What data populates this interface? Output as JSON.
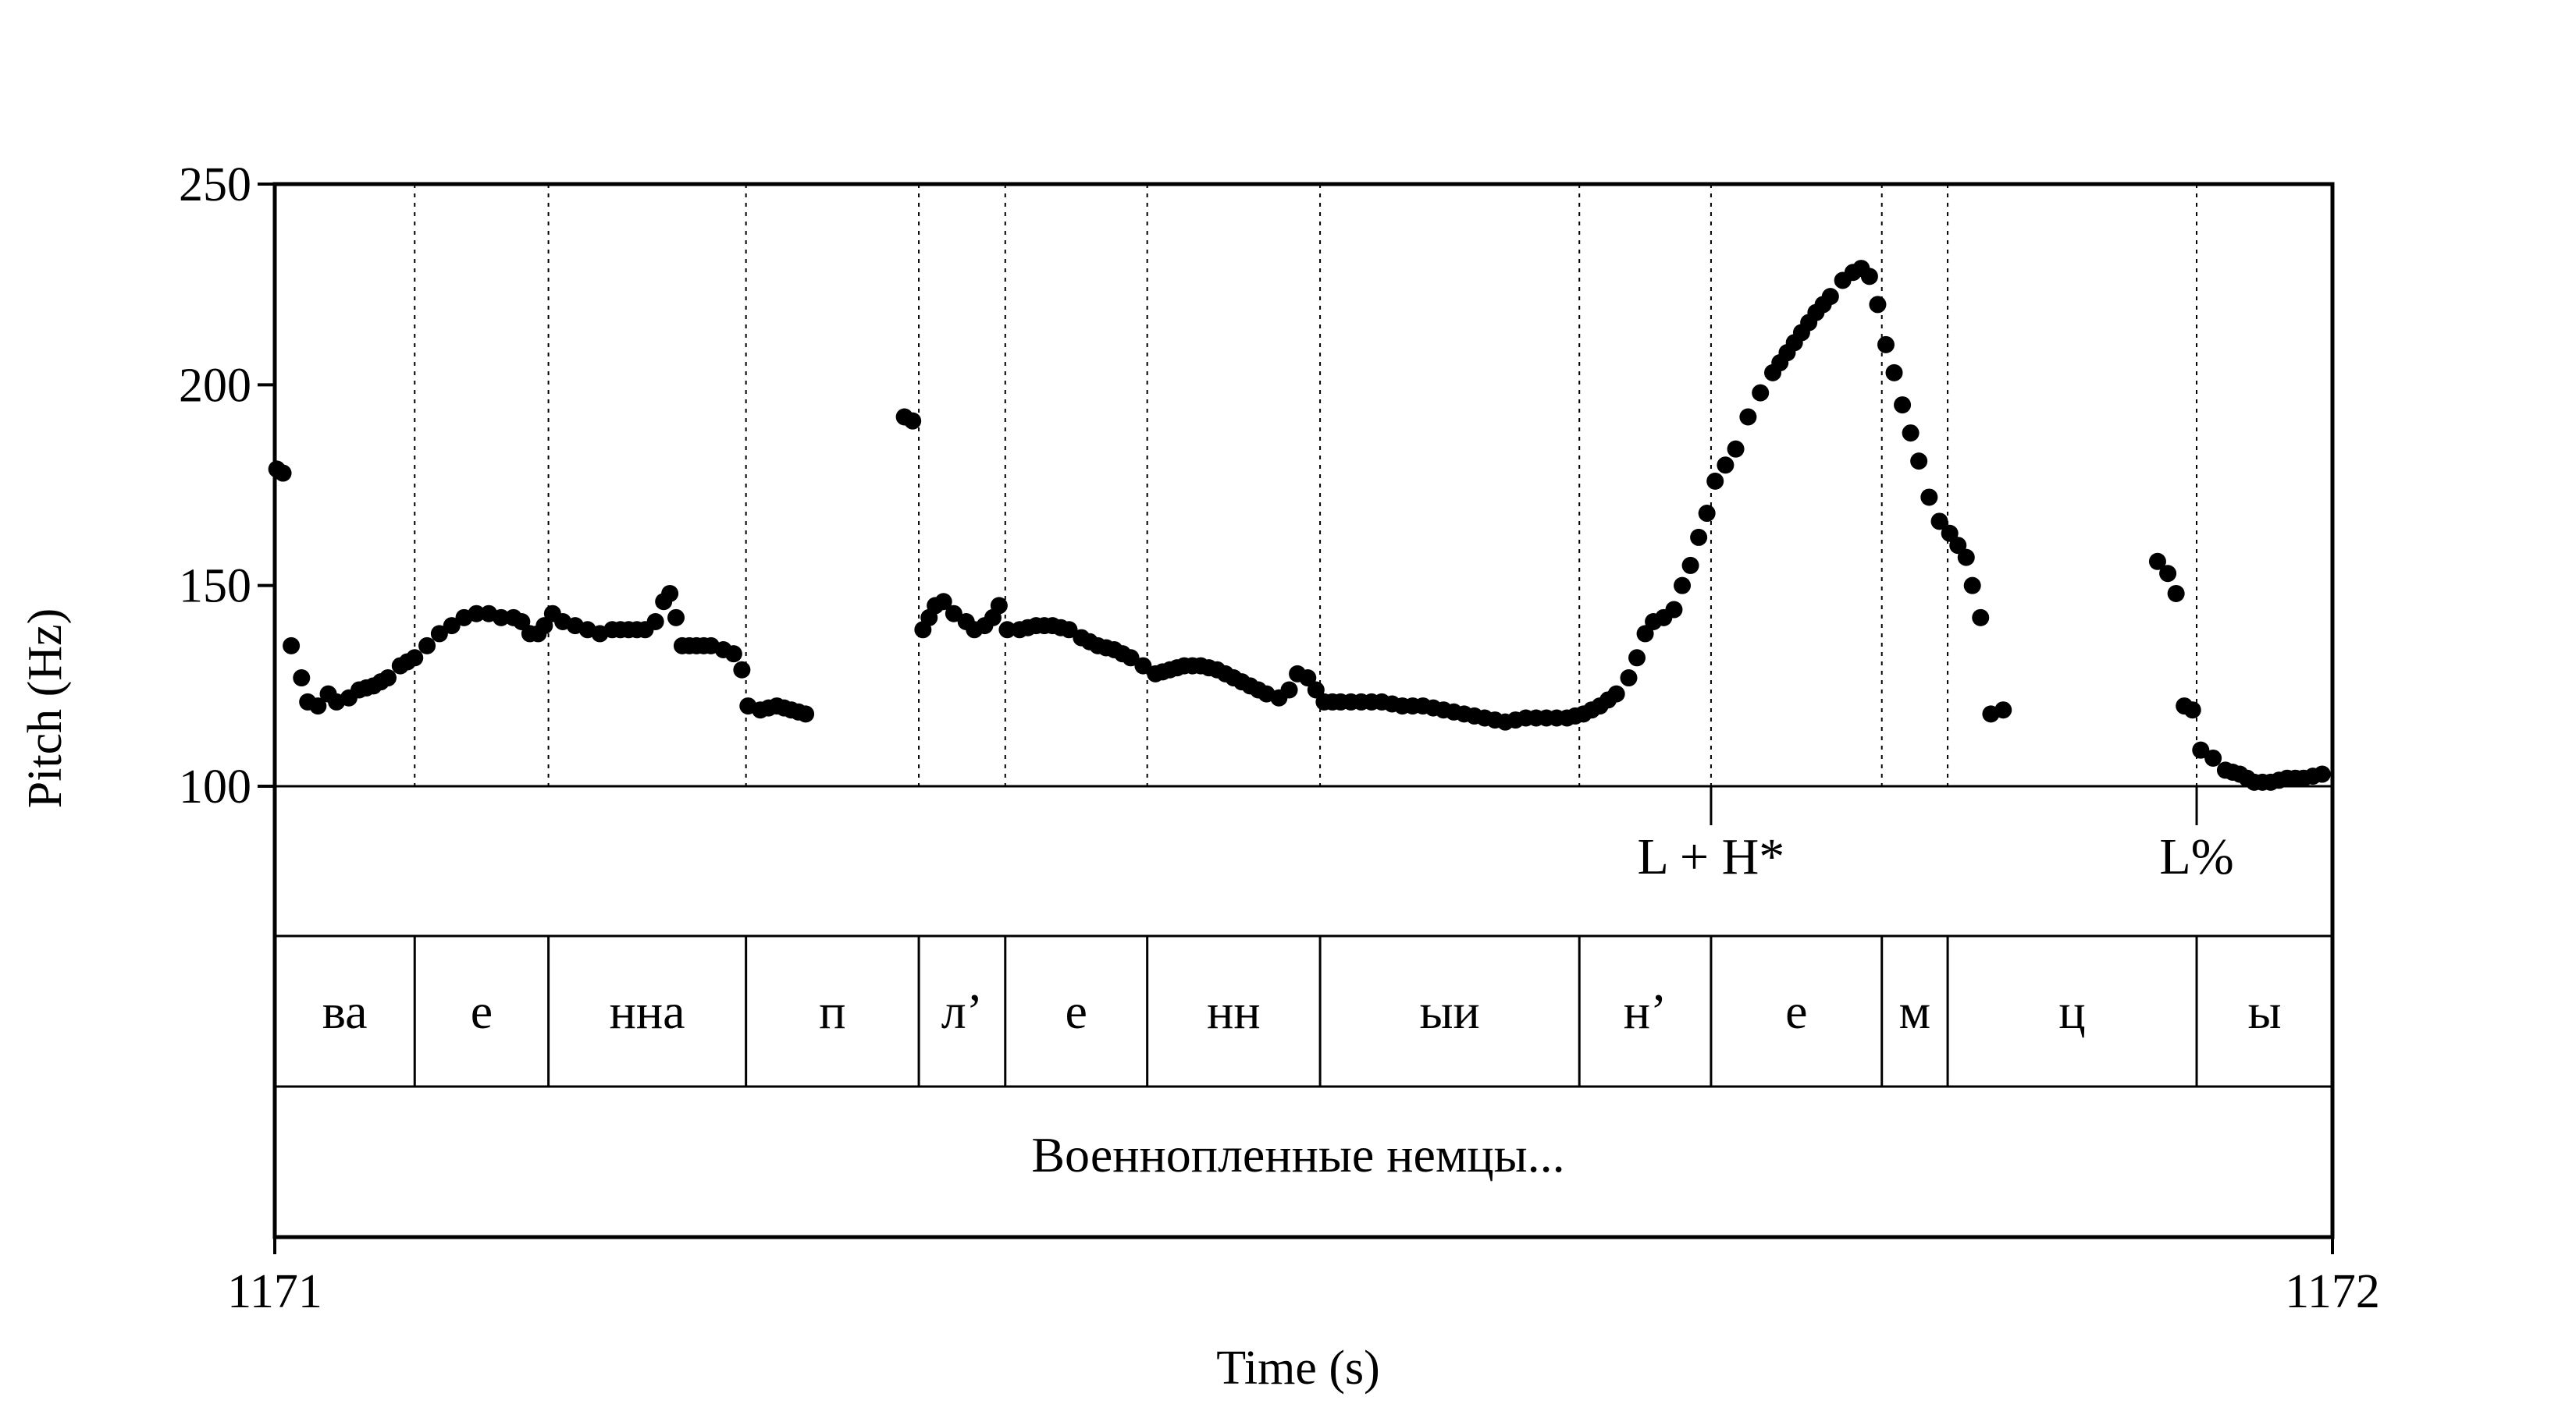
{
  "chart_data": {
    "type": "scatter",
    "title": "",
    "xlabel": "Time (s)",
    "ylabel": "Pitch (Hz)",
    "xlim": [
      1171,
      1172
    ],
    "ylim": [
      100,
      250
    ],
    "yticks": [
      "100",
      "150",
      "200",
      "250"
    ],
    "xticks": [
      "1171",
      "1172"
    ],
    "grid": false,
    "marker_color": "#000000",
    "segment_boundaries": [
      1171.068,
      1171.133,
      1171.229,
      1171.313,
      1171.355,
      1171.424,
      1171.508,
      1171.634,
      1171.698,
      1171.781,
      1171.813,
      1171.934
    ],
    "tones": [
      {
        "time": 1171.698,
        "label": "L + H*"
      },
      {
        "time": 1171.934,
        "label": "L%"
      }
    ],
    "segments": [
      {
        "start": 1171.0,
        "end": 1171.068,
        "label": "ва"
      },
      {
        "start": 1171.068,
        "end": 1171.133,
        "label": "е"
      },
      {
        "start": 1171.133,
        "end": 1171.229,
        "label": "нна"
      },
      {
        "start": 1171.229,
        "end": 1171.313,
        "label": "п"
      },
      {
        "start": 1171.313,
        "end": 1171.355,
        "label": "л’"
      },
      {
        "start": 1171.355,
        "end": 1171.424,
        "label": "е"
      },
      {
        "start": 1171.424,
        "end": 1171.508,
        "label": "нн"
      },
      {
        "start": 1171.508,
        "end": 1171.634,
        "label": "ыи"
      },
      {
        "start": 1171.634,
        "end": 1171.698,
        "label": "н’"
      },
      {
        "start": 1171.698,
        "end": 1171.781,
        "label": "е"
      },
      {
        "start": 1171.781,
        "end": 1171.813,
        "label": "м"
      },
      {
        "start": 1171.813,
        "end": 1171.934,
        "label": "ц"
      },
      {
        "start": 1171.934,
        "end": 1172.0,
        "label": "ы"
      }
    ],
    "utterance": "Военнопленные немцы...",
    "pitch_series": [
      [
        1171.001,
        179
      ],
      [
        1171.004,
        178
      ],
      [
        1171.008,
        135
      ],
      [
        1171.013,
        127
      ],
      [
        1171.016,
        121
      ],
      [
        1171.021,
        120
      ],
      [
        1171.026,
        123
      ],
      [
        1171.03,
        121
      ],
      [
        1171.036,
        122
      ],
      [
        1171.041,
        124
      ],
      [
        1171.048,
        125
      ],
      [
        1171.055,
        127
      ],
      [
        1171.061,
        130
      ],
      [
        1171.068,
        132
      ],
      [
        1171.074,
        135
      ],
      [
        1171.08,
        138
      ],
      [
        1171.086,
        140
      ],
      [
        1171.092,
        142
      ],
      [
        1171.098,
        143
      ],
      [
        1171.104,
        143
      ],
      [
        1171.11,
        142
      ],
      [
        1171.116,
        142
      ],
      [
        1171.12,
        141
      ],
      [
        1171.124,
        138
      ],
      [
        1171.128,
        138
      ],
      [
        1171.131,
        140
      ],
      [
        1171.135,
        143
      ],
      [
        1171.14,
        141
      ],
      [
        1171.146,
        140
      ],
      [
        1171.152,
        139
      ],
      [
        1171.158,
        138
      ],
      [
        1171.164,
        139
      ],
      [
        1171.172,
        139
      ],
      [
        1171.18,
        139
      ],
      [
        1171.185,
        141
      ],
      [
        1171.189,
        146
      ],
      [
        1171.192,
        148
      ],
      [
        1171.195,
        142
      ],
      [
        1171.198,
        135
      ],
      [
        1171.205,
        135
      ],
      [
        1171.212,
        135
      ],
      [
        1171.218,
        134
      ],
      [
        1171.223,
        133
      ],
      [
        1171.227,
        129
      ],
      [
        1171.23,
        120
      ],
      [
        1171.236,
        119
      ],
      [
        1171.244,
        120
      ],
      [
        1171.251,
        119
      ],
      [
        1171.258,
        118
      ],
      [
        1171.306,
        192
      ],
      [
        1171.31,
        191
      ],
      [
        1171.315,
        139
      ],
      [
        1171.318,
        142
      ],
      [
        1171.321,
        145
      ],
      [
        1171.325,
        146
      ],
      [
        1171.33,
        143
      ],
      [
        1171.336,
        141
      ],
      [
        1171.34,
        139
      ],
      [
        1171.345,
        140
      ],
      [
        1171.349,
        142
      ],
      [
        1171.352,
        145
      ],
      [
        1171.356,
        139
      ],
      [
        1171.362,
        139
      ],
      [
        1171.37,
        140
      ],
      [
        1171.378,
        140
      ],
      [
        1171.386,
        139
      ],
      [
        1171.392,
        137
      ],
      [
        1171.4,
        135
      ],
      [
        1171.408,
        134
      ],
      [
        1171.416,
        132
      ],
      [
        1171.422,
        130
      ],
      [
        1171.428,
        128
      ],
      [
        1171.435,
        129
      ],
      [
        1171.442,
        130
      ],
      [
        1171.45,
        130
      ],
      [
        1171.458,
        129
      ],
      [
        1171.466,
        127
      ],
      [
        1171.474,
        125
      ],
      [
        1171.482,
        123
      ],
      [
        1171.488,
        122
      ],
      [
        1171.493,
        124
      ],
      [
        1171.497,
        128
      ],
      [
        1171.502,
        127
      ],
      [
        1171.51,
        121
      ],
      [
        1171.518,
        121
      ],
      [
        1171.528,
        121
      ],
      [
        1171.538,
        121
      ],
      [
        1171.548,
        120
      ],
      [
        1171.558,
        120
      ],
      [
        1171.568,
        119
      ],
      [
        1171.578,
        118
      ],
      [
        1171.588,
        117
      ],
      [
        1171.598,
        116
      ],
      [
        1171.608,
        117
      ],
      [
        1171.618,
        117
      ],
      [
        1171.628,
        117
      ],
      [
        1171.636,
        118
      ],
      [
        1171.644,
        120
      ],
      [
        1171.652,
        123
      ],
      [
        1171.658,
        127
      ],
      [
        1171.662,
        132
      ],
      [
        1171.666,
        138
      ],
      [
        1171.67,
        141
      ],
      [
        1171.675,
        142
      ],
      [
        1171.68,
        144
      ],
      [
        1171.684,
        150
      ],
      [
        1171.688,
        155
      ],
      [
        1171.692,
        162
      ],
      [
        1171.696,
        168
      ],
      [
        1171.7,
        176
      ],
      [
        1171.705,
        180
      ],
      [
        1171.71,
        184
      ],
      [
        1171.716,
        192
      ],
      [
        1171.722,
        198
      ],
      [
        1171.728,
        203
      ],
      [
        1171.735,
        208
      ],
      [
        1171.742,
        213
      ],
      [
        1171.749,
        218
      ],
      [
        1171.756,
        222
      ],
      [
        1171.762,
        226
      ],
      [
        1171.767,
        228
      ],
      [
        1171.771,
        229
      ],
      [
        1171.775,
        227
      ],
      [
        1171.779,
        220
      ],
      [
        1171.783,
        210
      ],
      [
        1171.787,
        203
      ],
      [
        1171.791,
        195
      ],
      [
        1171.795,
        188
      ],
      [
        1171.799,
        181
      ],
      [
        1171.804,
        172
      ],
      [
        1171.809,
        166
      ],
      [
        1171.814,
        163
      ],
      [
        1171.818,
        160
      ],
      [
        1171.822,
        157
      ],
      [
        1171.825,
        150
      ],
      [
        1171.829,
        142
      ],
      [
        1171.834,
        118
      ],
      [
        1171.84,
        119
      ],
      [
        1171.915,
        156
      ],
      [
        1171.92,
        153
      ],
      [
        1171.924,
        148
      ],
      [
        1171.928,
        120
      ],
      [
        1171.932,
        119
      ],
      [
        1171.936,
        109
      ],
      [
        1171.942,
        107
      ],
      [
        1171.948,
        104
      ],
      [
        1171.955,
        103
      ],
      [
        1171.962,
        101
      ],
      [
        1171.97,
        101
      ],
      [
        1171.978,
        102
      ],
      [
        1171.986,
        102
      ],
      [
        1171.995,
        103
      ]
    ]
  }
}
